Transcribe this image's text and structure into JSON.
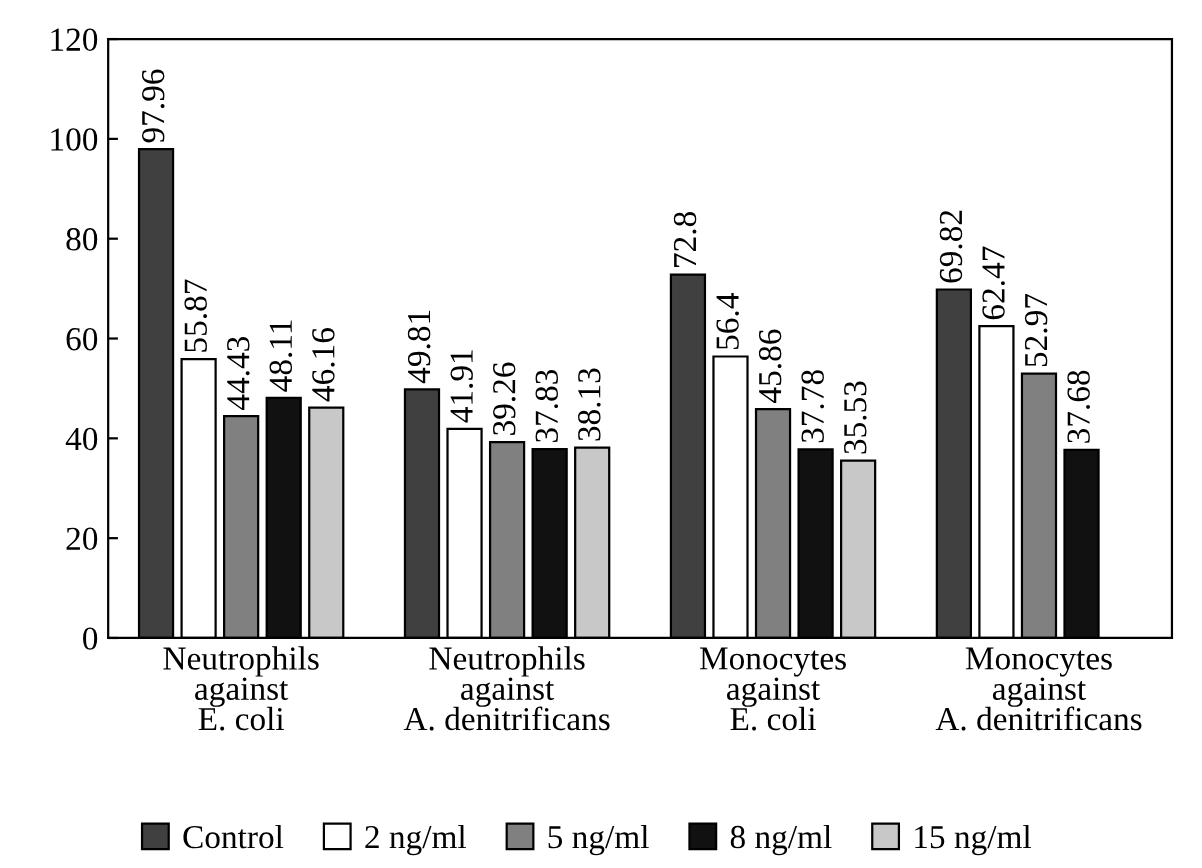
{
  "chart_data": {
    "type": "bar",
    "categories": [
      "Neutrophils\nagainst\nE. coli",
      "Neutrophils\nagainst\nA. denitrificans",
      "Monocytes\nagainst\nE. coli",
      "Monocytes\nagainst\nA. denitrificans"
    ],
    "series": [
      {
        "name": "Control",
        "color": "#404040",
        "values": [
          97.96,
          49.81,
          72.8,
          69.82
        ]
      },
      {
        "name": "2 ng/ml",
        "color": "#ffffff",
        "values": [
          55.87,
          41.91,
          56.4,
          62.47
        ]
      },
      {
        "name": "5 ng/ml",
        "color": "#808080",
        "values": [
          44.43,
          39.26,
          45.86,
          52.97
        ]
      },
      {
        "name": "8 ng/ml",
        "color": "#111111",
        "values": [
          48.11,
          37.83,
          37.78,
          37.68
        ]
      },
      {
        "name": "15 ng/ml",
        "color": "#c8c8c8",
        "values": [
          46.16,
          38.13,
          35.53,
          null
        ]
      }
    ],
    "ylim": [
      0,
      120
    ],
    "yticks": [
      0,
      20,
      40,
      60,
      80,
      100,
      120
    ],
    "grid": false,
    "legend": "bottom",
    "data_labels": true
  }
}
